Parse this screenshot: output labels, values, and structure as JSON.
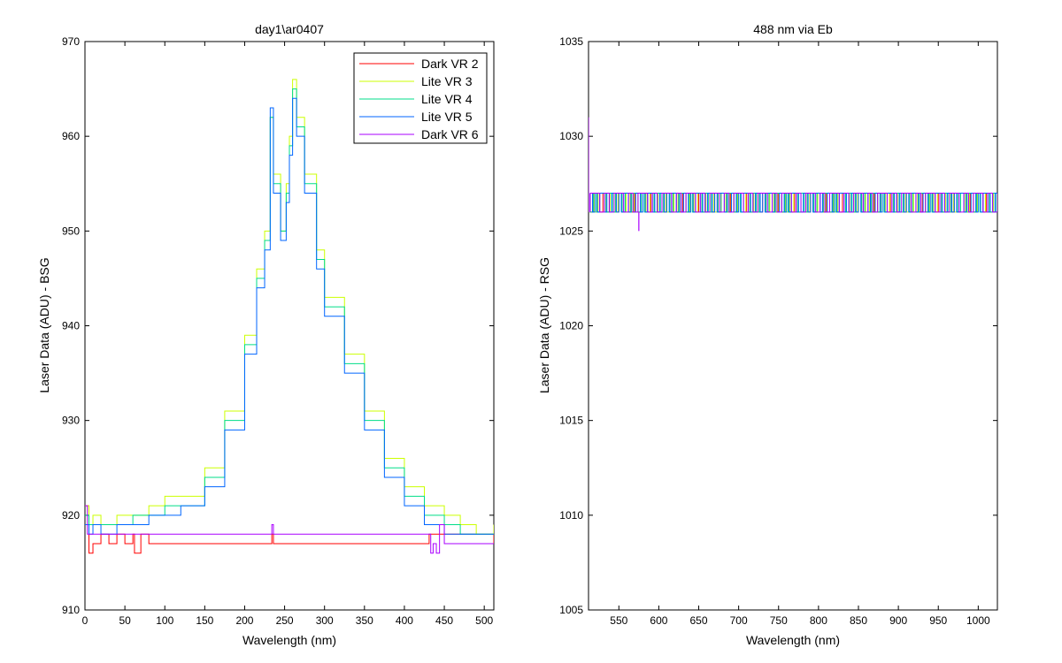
{
  "chart_data": [
    {
      "type": "line",
      "title": "day1\\ar0407",
      "xlabel": "Wavelength (nm)",
      "ylabel": "Laser Data (ADU) - BSG",
      "xlim": [
        0,
        512
      ],
      "ylim": [
        910,
        970
      ],
      "xticks": [
        0,
        50,
        100,
        150,
        200,
        250,
        300,
        350,
        400,
        450,
        500
      ],
      "yticks": [
        910,
        920,
        930,
        940,
        950,
        960,
        970
      ],
      "grid": false,
      "legend_position": "top-right",
      "series": [
        {
          "name": "Dark VR 2",
          "color": "#ff0000",
          "x": [
            0,
            5,
            10,
            20,
            30,
            40,
            50,
            60,
            62,
            70,
            80,
            100,
            150,
            200,
            232,
            234,
            236,
            300,
            400,
            430,
            431,
            512
          ],
          "y": [
            921,
            916,
            917,
            918,
            917,
            918,
            917,
            918,
            916,
            918,
            917,
            917,
            917,
            917,
            917,
            918,
            917,
            917,
            917,
            917,
            918,
            917
          ]
        },
        {
          "name": "Lite VR 3",
          "color": "#ccff00",
          "x": [
            0,
            5,
            10,
            20,
            40,
            60,
            80,
            100,
            120,
            150,
            175,
            200,
            215,
            225,
            232,
            236,
            245,
            252,
            256,
            260,
            265,
            275,
            290,
            300,
            325,
            350,
            375,
            400,
            425,
            450,
            470,
            490,
            512
          ],
          "y": [
            921,
            919,
            920,
            919,
            920,
            920,
            921,
            922,
            922,
            925,
            931,
            939,
            946,
            950,
            962,
            956,
            950,
            955,
            960,
            966,
            962,
            956,
            948,
            943,
            937,
            931,
            926,
            923,
            921,
            920,
            919,
            918,
            919
          ]
        },
        {
          "name": "Lite VR 4",
          "color": "#00dd88",
          "x": [
            0,
            5,
            10,
            20,
            40,
            60,
            80,
            100,
            120,
            150,
            175,
            200,
            215,
            225,
            232,
            236,
            245,
            252,
            256,
            260,
            265,
            275,
            290,
            300,
            325,
            350,
            375,
            400,
            425,
            450,
            470,
            490,
            512
          ],
          "y": [
            920,
            919,
            919,
            919,
            919,
            920,
            920,
            921,
            921,
            924,
            930,
            938,
            945,
            949,
            962,
            955,
            950,
            954,
            959,
            965,
            961,
            955,
            947,
            942,
            936,
            930,
            925,
            922,
            920,
            919,
            918,
            918,
            918
          ]
        },
        {
          "name": "Lite VR 5",
          "color": "#0066ff",
          "x": [
            0,
            5,
            10,
            20,
            40,
            60,
            80,
            100,
            120,
            150,
            175,
            200,
            215,
            225,
            232,
            236,
            245,
            252,
            256,
            260,
            265,
            275,
            290,
            300,
            325,
            350,
            375,
            400,
            425,
            450,
            470,
            490,
            512
          ],
          "y": [
            919,
            918,
            919,
            918,
            919,
            919,
            920,
            920,
            921,
            923,
            929,
            937,
            944,
            948,
            963,
            954,
            949,
            953,
            958,
            964,
            960,
            954,
            946,
            941,
            935,
            929,
            924,
            921,
            919,
            918,
            918,
            918,
            918
          ]
        },
        {
          "name": "Dark VR 6",
          "color": "#aa00ff",
          "x": [
            0,
            3,
            6,
            10,
            50,
            100,
            200,
            232,
            234,
            236,
            300,
            400,
            430,
            433,
            436,
            440,
            444,
            450,
            460,
            470,
            480,
            490,
            500,
            512
          ],
          "y": [
            921,
            918,
            918,
            918,
            918,
            918,
            918,
            918,
            919,
            918,
            918,
            918,
            918,
            916,
            917,
            916,
            919,
            917,
            917,
            917,
            917,
            917,
            917,
            917
          ]
        }
      ]
    },
    {
      "type": "line",
      "title": "488 nm via Eb",
      "xlabel": "Wavelength (nm)",
      "ylabel": "Laser Data (ADU) - RSG",
      "xlim": [
        512,
        1024
      ],
      "ylim": [
        1005,
        1035
      ],
      "xticks": [
        550,
        600,
        650,
        700,
        750,
        800,
        850,
        900,
        950,
        1000
      ],
      "yticks": [
        1005,
        1010,
        1015,
        1020,
        1025,
        1030,
        1035
      ],
      "grid": false,
      "series": [
        {
          "name": "",
          "color": "#ff0000",
          "band": [
            1026,
            1027
          ],
          "step": 4,
          "x_range": [
            514,
            1024
          ]
        },
        {
          "name": "",
          "color": "#ccff00",
          "band": [
            1026,
            1027
          ],
          "step": 5,
          "x_range": [
            514,
            1024
          ]
        },
        {
          "name": "",
          "color": "#00dd88",
          "band": [
            1026,
            1027
          ],
          "step": 4,
          "x_range": [
            514,
            1024
          ]
        },
        {
          "name": "",
          "color": "#0066ff",
          "band": [
            1026,
            1027
          ],
          "step": 3,
          "x_range": [
            514,
            1024
          ]
        },
        {
          "name": "",
          "color": "#aa00ff",
          "band": [
            1026,
            1027
          ],
          "step": 6,
          "x_range": [
            514,
            1024
          ],
          "extra_points": [
            {
              "x": 512,
              "y": 1031
            },
            {
              "x": 514,
              "y": 1027
            },
            {
              "x": 575,
              "y": 1025
            }
          ]
        }
      ]
    }
  ]
}
